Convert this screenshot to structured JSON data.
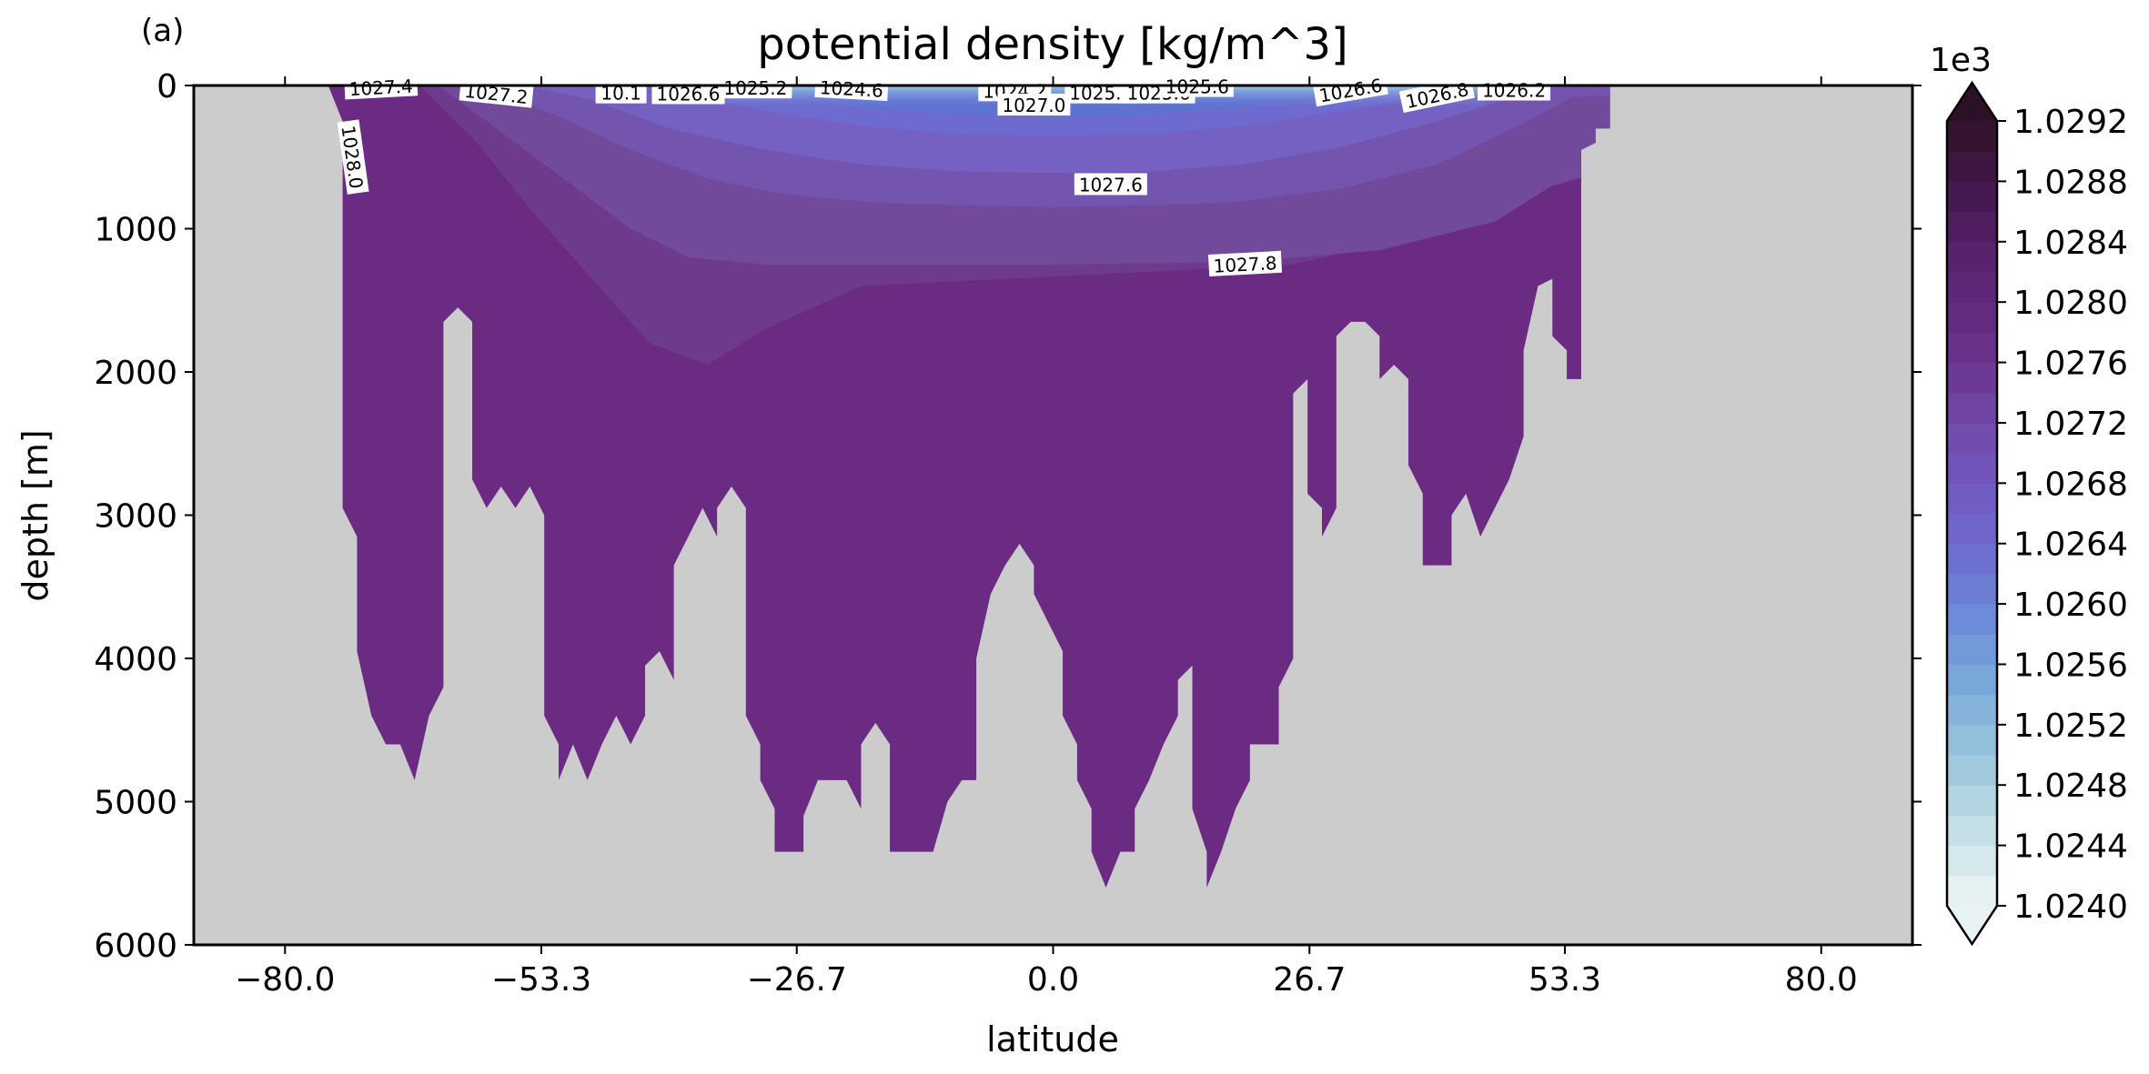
{
  "panel_label": "(a)",
  "chart_data": {
    "type": "contourf",
    "title": "potential density [kg/m^3]",
    "xlabel": "latitude",
    "ylabel": "depth [m]",
    "xlim": [
      -89.5,
      89.5
    ],
    "ylim": [
      6000,
      0
    ],
    "xticks": [
      "−80.0",
      "−53.3",
      "−26.7",
      "0.0",
      "26.7",
      "53.3",
      "80.0"
    ],
    "xtick_values": [
      -80.0,
      -53.3,
      -26.7,
      0.0,
      26.7,
      53.3,
      80.0
    ],
    "yticks": [
      "0",
      "1000",
      "2000",
      "3000",
      "4000",
      "5000",
      "6000"
    ],
    "ytick_values": [
      0,
      1000,
      2000,
      3000,
      4000,
      5000,
      6000
    ],
    "land_color": "#cccccc",
    "colormap": "dense",
    "colorbar": {
      "offset_label": "1e3",
      "ticks": [
        "1.0240",
        "1.0244",
        "1.0248",
        "1.0252",
        "1.0256",
        "1.0260",
        "1.0264",
        "1.0268",
        "1.0272",
        "1.0276",
        "1.0280",
        "1.0284",
        "1.0288",
        "1.0292"
      ],
      "vmin": 1024.0,
      "vmax": 1029.2,
      "level_step": 0.2,
      "extend": "both"
    },
    "bottom_profile": [
      [
        -75.5,
        0
      ],
      [
        -74.0,
        250
      ],
      [
        -74.0,
        2950
      ],
      [
        -72.5,
        3150
      ],
      [
        -72.5,
        3950
      ],
      [
        -71.0,
        4400
      ],
      [
        -69.5,
        4600
      ],
      [
        -68.0,
        4600
      ],
      [
        -66.5,
        4850
      ],
      [
        -65.0,
        4400
      ],
      [
        -63.5,
        4200
      ],
      [
        -63.5,
        1650
      ],
      [
        -62.0,
        1550
      ],
      [
        -60.5,
        1650
      ],
      [
        -60.5,
        2750
      ],
      [
        -59.0,
        2950
      ],
      [
        -57.5,
        2800
      ],
      [
        -56.0,
        2950
      ],
      [
        -54.5,
        2800
      ],
      [
        -53.0,
        3000
      ],
      [
        -53.0,
        4400
      ],
      [
        -51.5,
        4600
      ],
      [
        -51.5,
        4850
      ],
      [
        -50.0,
        4600
      ],
      [
        -48.5,
        4850
      ],
      [
        -47.0,
        4600
      ],
      [
        -45.5,
        4400
      ],
      [
        -44.0,
        4600
      ],
      [
        -42.5,
        4400
      ],
      [
        -42.5,
        4050
      ],
      [
        -41.0,
        3950
      ],
      [
        -39.5,
        4150
      ],
      [
        -39.5,
        3350
      ],
      [
        -36.5,
        2950
      ],
      [
        -35.0,
        3150
      ],
      [
        -35.0,
        2950
      ],
      [
        -33.5,
        2800
      ],
      [
        -32.0,
        2950
      ],
      [
        -32.0,
        4400
      ],
      [
        -30.5,
        4600
      ],
      [
        -30.5,
        4850
      ],
      [
        -29.0,
        5050
      ],
      [
        -29.0,
        5350
      ],
      [
        -26.0,
        5350
      ],
      [
        -26.0,
        5100
      ],
      [
        -24.5,
        4850
      ],
      [
        -21.5,
        4850
      ],
      [
        -20.0,
        5050
      ],
      [
        -20.0,
        4600
      ],
      [
        -18.5,
        4450
      ],
      [
        -17.0,
        4600
      ],
      [
        -17.0,
        5350
      ],
      [
        -12.5,
        5350
      ],
      [
        -11.0,
        5000
      ],
      [
        -9.5,
        4850
      ],
      [
        -8.0,
        4850
      ],
      [
        -8.0,
        4000
      ],
      [
        -6.5,
        3550
      ],
      [
        -5.0,
        3350
      ],
      [
        -3.5,
        3200
      ],
      [
        -2.0,
        3350
      ],
      [
        -2.0,
        3550
      ],
      [
        -0.5,
        3750
      ],
      [
        1.0,
        3950
      ],
      [
        1.0,
        4400
      ],
      [
        2.5,
        4600
      ],
      [
        2.5,
        4850
      ],
      [
        4.0,
        5050
      ],
      [
        4.0,
        5350
      ],
      [
        5.5,
        5600
      ],
      [
        7.0,
        5350
      ],
      [
        8.5,
        5350
      ],
      [
        8.5,
        5050
      ],
      [
        10.0,
        4850
      ],
      [
        11.5,
        4600
      ],
      [
        13.0,
        4400
      ],
      [
        13.0,
        4150
      ],
      [
        14.5,
        4050
      ],
      [
        14.5,
        5050
      ],
      [
        16.0,
        5350
      ],
      [
        16.0,
        5600
      ],
      [
        17.5,
        5350
      ],
      [
        19.0,
        5050
      ],
      [
        20.5,
        4850
      ],
      [
        20.5,
        4600
      ],
      [
        23.5,
        4600
      ],
      [
        23.5,
        4200
      ],
      [
        25.0,
        4000
      ],
      [
        25.0,
        2150
      ],
      [
        26.5,
        2050
      ],
      [
        26.5,
        2850
      ],
      [
        28.0,
        2950
      ],
      [
        28.0,
        3150
      ],
      [
        29.5,
        2950
      ],
      [
        29.5,
        1750
      ],
      [
        31.0,
        1650
      ],
      [
        32.5,
        1650
      ],
      [
        34.0,
        1750
      ],
      [
        34.0,
        2050
      ],
      [
        35.5,
        1950
      ],
      [
        37.0,
        2050
      ],
      [
        37.0,
        2650
      ],
      [
        38.5,
        2850
      ],
      [
        38.5,
        3350
      ],
      [
        41.5,
        3350
      ],
      [
        41.5,
        3000
      ],
      [
        43.0,
        2850
      ],
      [
        44.5,
        3150
      ],
      [
        46.0,
        2950
      ],
      [
        47.5,
        2750
      ],
      [
        49.0,
        2450
      ],
      [
        49.0,
        1850
      ],
      [
        50.5,
        1400
      ],
      [
        52.0,
        1350
      ],
      [
        52.0,
        1750
      ],
      [
        53.5,
        1850
      ],
      [
        53.5,
        2050
      ],
      [
        55.0,
        2050
      ],
      [
        55.0,
        450
      ],
      [
        56.5,
        400
      ],
      [
        56.5,
        300
      ],
      [
        58.0,
        300
      ],
      [
        58.0,
        0
      ]
    ],
    "contour_lines": [
      {
        "label": "1026.2",
        "points": [
          [
            -37,
            0
          ],
          [
            -30,
            50
          ],
          [
            -20,
            150
          ],
          [
            -10,
            200
          ],
          [
            0,
            220
          ],
          [
            10,
            200
          ],
          [
            20,
            150
          ],
          [
            30,
            80
          ],
          [
            36,
            0
          ]
        ]
      },
      {
        "label": "1026.6",
        "points": [
          [
            -45,
            0
          ],
          [
            -38,
            60
          ],
          [
            -30,
            180
          ],
          [
            -20,
            280
          ],
          [
            -10,
            340
          ],
          [
            0,
            350
          ],
          [
            10,
            340
          ],
          [
            20,
            280
          ],
          [
            30,
            180
          ],
          [
            40,
            60
          ],
          [
            45,
            0
          ]
        ]
      },
      {
        "label": "1027.0",
        "points": [
          [
            -55,
            0
          ],
          [
            -48,
            100
          ],
          [
            -40,
            300
          ],
          [
            -30,
            450
          ],
          [
            -20,
            550
          ],
          [
            -10,
            600
          ],
          [
            0,
            610
          ],
          [
            10,
            600
          ],
          [
            20,
            550
          ],
          [
            30,
            430
          ],
          [
            40,
            250
          ],
          [
            48,
            80
          ],
          [
            52,
            0
          ]
        ]
      },
      {
        "label": "1027.2",
        "points": [
          [
            -60,
            0
          ],
          [
            -52,
            200
          ],
          [
            -44,
            450
          ],
          [
            -36,
            650
          ],
          [
            -28,
            760
          ],
          [
            -18,
            820
          ],
          [
            0,
            850
          ],
          [
            18,
            820
          ],
          [
            30,
            720
          ],
          [
            40,
            550
          ],
          [
            48,
            300
          ],
          [
            54,
            80
          ]
        ]
      },
      {
        "label": "1027.6",
        "points": [
          [
            -64,
            0
          ],
          [
            -58,
            300
          ],
          [
            -50,
            700
          ],
          [
            -44,
            1000
          ],
          [
            -38,
            1200
          ],
          [
            -30,
            1250
          ],
          [
            -20,
            1250
          ],
          [
            0,
            1250
          ],
          [
            20,
            1230
          ],
          [
            34,
            1150
          ],
          [
            46,
            950
          ],
          [
            52,
            700
          ]
        ]
      },
      {
        "label": "1027.8",
        "points": [
          [
            -66,
            0
          ],
          [
            -60,
            400
          ],
          [
            -54,
            900
          ],
          [
            -48,
            1350
          ],
          [
            -42,
            1800
          ],
          [
            -36,
            1950
          ],
          [
            -30,
            1700
          ],
          [
            -20,
            1400
          ],
          [
            -5,
            1350
          ],
          [
            10,
            1300
          ],
          [
            25,
            1250
          ],
          [
            38,
            1050
          ],
          [
            48,
            800
          ],
          [
            55,
            300
          ]
        ]
      },
      {
        "label": "1028.0",
        "points": [
          [
            -73,
            50
          ],
          [
            -72,
            500
          ],
          [
            -71,
            900
          ]
        ]
      }
    ],
    "contour_label_texts": [
      "1027.4",
      "1027.2",
      "10.1",
      "1026.6",
      "1025.2",
      "1024.6",
      "1024.2",
      "1027.0",
      "1025.8",
      "1025.6",
      "1025.6",
      "1026.6",
      "1026.8",
      "1026.2",
      "1027.6",
      "1027.8",
      "1028.0"
    ]
  }
}
